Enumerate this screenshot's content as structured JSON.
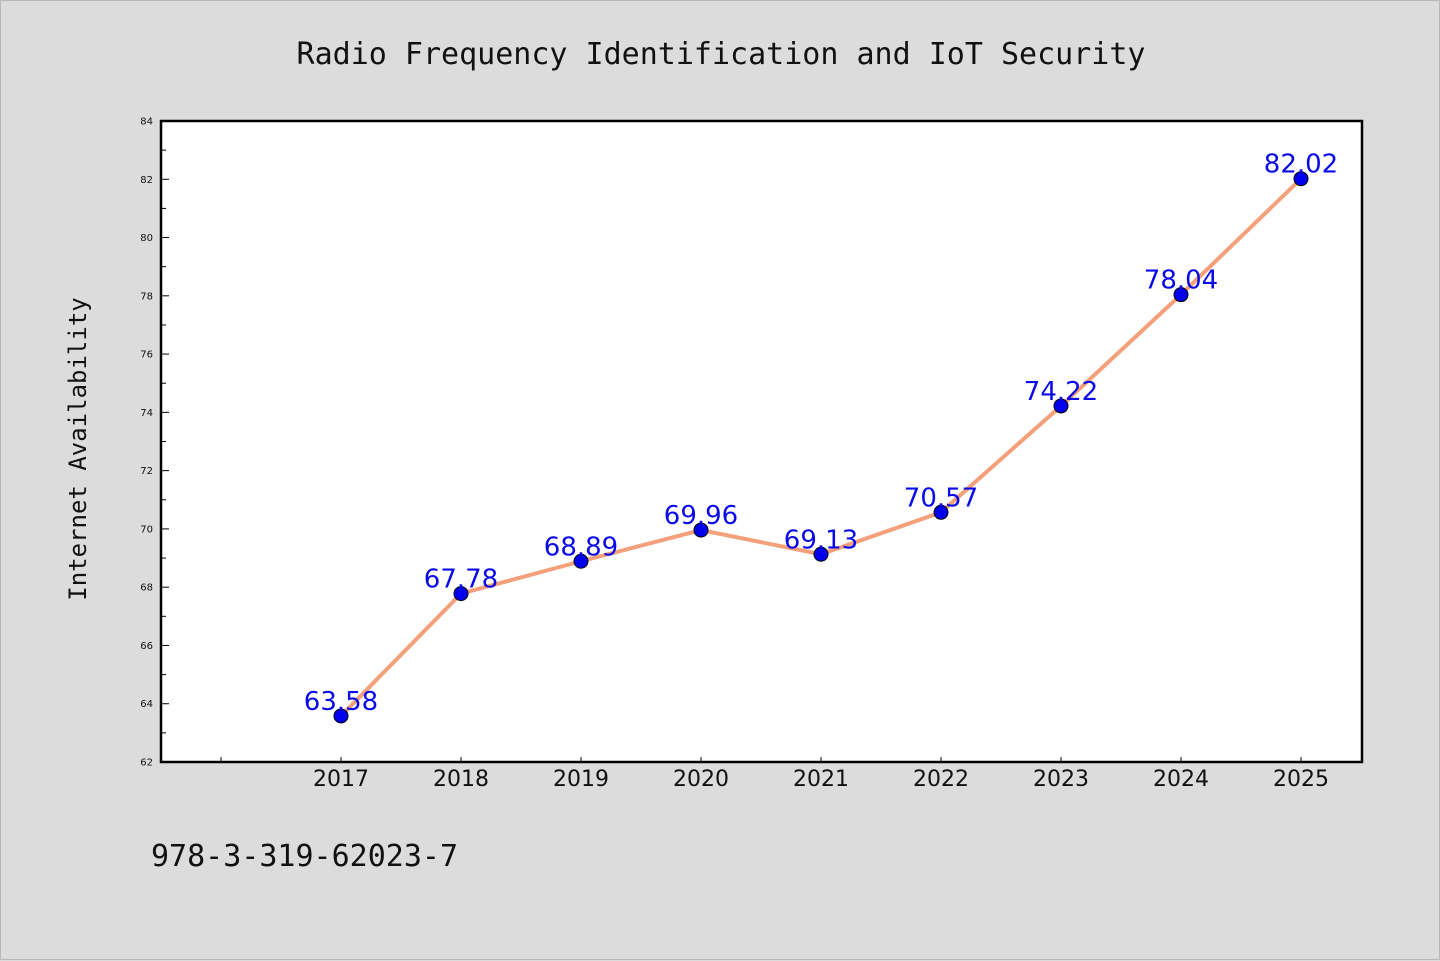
{
  "chart_data": {
    "type": "line",
    "title": "Radio Frequency Identification and IoT Security",
    "xlabel": "",
    "ylabel": "Internet Availability",
    "categories": [
      "2017",
      "2018",
      "2019",
      "2020",
      "2021",
      "2022",
      "2023",
      "2024",
      "2025"
    ],
    "series": [
      {
        "values": [
          63.58,
          67.78,
          68.89,
          69.96,
          69.13,
          70.57,
          74.22,
          78.04,
          82.02
        ],
        "data_labels": [
          "63.58",
          "67.78",
          "68.89",
          "69.96",
          "69.13",
          "70.57",
          "74.22",
          "78.04",
          "82.02"
        ],
        "line_color": "#f4a07a",
        "marker_color": "#0000ee"
      }
    ],
    "ylim": [
      62,
      84
    ],
    "yticks": [
      "62",
      "64",
      "66",
      "68",
      "70",
      "72",
      "74",
      "76",
      "78",
      "80",
      "82",
      "84"
    ],
    "grid": false,
    "legend": "none"
  },
  "footer": {
    "isbn": "978-3-319-62023-7"
  },
  "colors": {
    "background": "#dcdcdc",
    "plot_background": "#ffffff",
    "label_color": "#0a0ae8"
  }
}
